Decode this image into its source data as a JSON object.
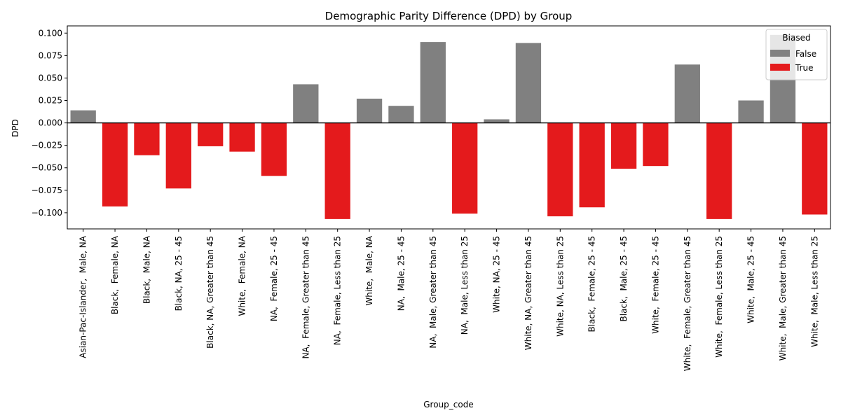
{
  "chart_data": {
    "type": "bar",
    "title": "Demographic Parity Difference (DPD) by Group",
    "xlabel": "Group_code",
    "ylabel": "DPD",
    "ylim": [
      -0.118,
      0.108
    ],
    "yticks": [
      "−0.100",
      "−0.075",
      "−0.050",
      "−0.025",
      "0.000",
      "0.025",
      "0.050",
      "0.075",
      "0.100"
    ],
    "ytick_values": [
      -0.1,
      -0.075,
      -0.05,
      -0.025,
      0.0,
      0.025,
      0.05,
      0.075,
      0.1
    ],
    "grid": false,
    "legend": {
      "title": "Biased",
      "placement": "top-right",
      "entries": [
        {
          "label": "False",
          "color": "#808080"
        },
        {
          "label": "True",
          "color": "#e41a1c"
        }
      ]
    },
    "colors": {
      "False": "#808080",
      "True": "#e41a1c"
    },
    "categories": [
      "Asian-Pac-Islander,  Male, NA",
      "Black,  Female, NA",
      "Black,  Male, NA",
      "Black, NA, 25 - 45",
      "Black, NA, Greater than 45",
      "White,  Female, NA",
      "NA,  Female, 25 - 45",
      "NA,  Female, Greater than 45",
      "NA,  Female, Less than 25",
      "White,  Male, NA",
      "NA,  Male, 25 - 45",
      "NA,  Male, Greater than 45",
      "NA,  Male, Less than 25",
      "White, NA, 25 - 45",
      "White, NA, Greater than 45",
      "White, NA, Less than 25",
      "Black,  Female, 25 - 45",
      "Black,  Male, 25 - 45",
      "White,  Female, 25 - 45",
      "White,  Female, Greater than 45",
      "White,  Female, Less than 25",
      "White,  Male, 25 - 45",
      "White,  Male, Greater than 45",
      "White,  Male, Less than 25"
    ],
    "values": [
      0.014,
      -0.093,
      -0.036,
      -0.073,
      -0.026,
      -0.032,
      -0.059,
      0.043,
      -0.107,
      0.027,
      0.019,
      0.09,
      -0.101,
      0.004,
      0.089,
      -0.104,
      -0.094,
      -0.051,
      -0.048,
      0.065,
      -0.107,
      0.025,
      0.098,
      -0.102
    ],
    "biased": [
      false,
      true,
      true,
      true,
      true,
      true,
      true,
      false,
      true,
      false,
      false,
      false,
      true,
      false,
      false,
      true,
      true,
      true,
      true,
      false,
      true,
      false,
      false,
      true
    ]
  }
}
